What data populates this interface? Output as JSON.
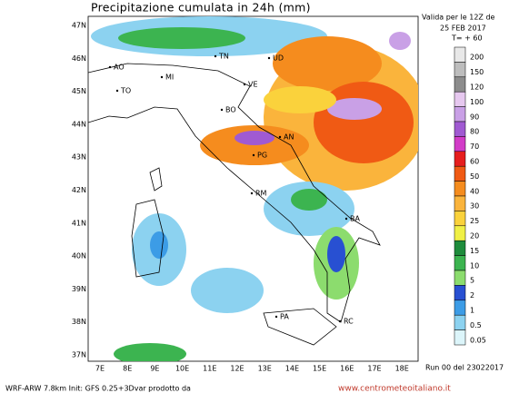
{
  "header": {
    "title": "Precipitazione cumulata in 24h (mm)",
    "valid": [
      "Valida per le 12Z de",
      "25 FEB 2017",
      "T= + 60"
    ]
  },
  "map": {
    "lat_labels": [
      "47N",
      "46N",
      "45N",
      "44N",
      "43N",
      "42N",
      "41N",
      "40N",
      "39N",
      "38N",
      "37N"
    ],
    "lon_labels": [
      "7E",
      "8E",
      "9E",
      "10E",
      "11E",
      "12E",
      "13E",
      "14E",
      "15E",
      "16E",
      "17E",
      "18E"
    ],
    "cities": [
      "AO",
      "TN",
      "UD",
      "MI",
      "VE",
      "TO",
      "BO",
      "AN",
      "PG",
      "RM",
      "BA",
      "PA",
      "RC"
    ]
  },
  "legend": {
    "levels": [
      200,
      150,
      120,
      100,
      90,
      80,
      70,
      60,
      50,
      40,
      30,
      25,
      20,
      15,
      10,
      5,
      2,
      1,
      0.5,
      0.05
    ],
    "colors": [
      "#e8e8e8",
      "#bdbdbd",
      "#8c8c8c",
      "#e6c8ef",
      "#c9a0e6",
      "#a05ad2",
      "#d23cc8",
      "#e61e1e",
      "#f05a14",
      "#f58c1e",
      "#fab43c",
      "#fad23c",
      "#f0f046",
      "#1e8c3c",
      "#3cb450",
      "#8cdc6e",
      "#2850d2",
      "#3c9ce6",
      "#8cd2f0",
      "#dcf5fa"
    ]
  },
  "footer": {
    "model": "WRF-ARW 7.8km Init: GFS 0.25+3Dvar prodotto da",
    "site": "www.centrometeoitaliano.it",
    "run": "Run 00 del 23022017"
  }
}
